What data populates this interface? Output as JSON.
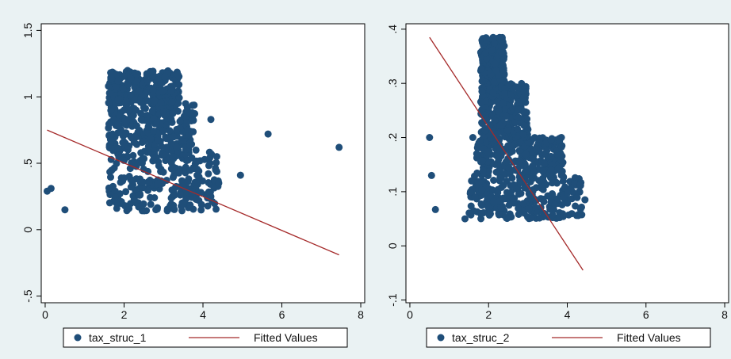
{
  "chart_data": [
    {
      "type": "scatter",
      "title": "",
      "xlabel": "",
      "ylabel": "",
      "xlim": [
        -0.1,
        8.1
      ],
      "ylim": [
        -0.55,
        1.55
      ],
      "x_ticks": [
        0,
        2,
        4,
        6,
        8
      ],
      "y_ticks": [
        -0.5,
        0,
        0.5,
        1,
        1.5
      ],
      "x_tick_labels": [
        "0",
        "2",
        "4",
        "6",
        "8"
      ],
      "y_tick_labels": [
        "-.5",
        "0",
        ".5",
        "1",
        "1.5"
      ],
      "grid": false,
      "legend": {
        "placement": "bottom",
        "entries": [
          "tax_struc_1",
          "Fitted Values"
        ]
      },
      "scatter_color": "#1f4e79",
      "line_color": "#a52a2a",
      "cloud": [
        {
          "x": [
            1.6,
            4.4
          ],
          "y": [
            0.14,
            0.6
          ]
        },
        {
          "x": [
            1.6,
            3.8
          ],
          "y": [
            0.6,
            0.95
          ]
        },
        {
          "x": [
            1.6,
            3.4
          ],
          "y": [
            0.95,
            1.2
          ]
        }
      ],
      "series": [
        {
          "name": "tax_struc_1",
          "kind": "scatter",
          "points": [
            [
              0.05,
              0.29
            ],
            [
              0.15,
              0.31
            ],
            [
              0.5,
              0.15
            ],
            [
              4.95,
              0.41
            ],
            [
              5.65,
              0.72
            ],
            [
              7.45,
              0.62
            ],
            [
              4.2,
              0.83
            ],
            [
              4.35,
              0.55
            ],
            [
              4.2,
              0.25
            ],
            [
              3.95,
              0.28
            ],
            [
              4.4,
              0.35
            ]
          ]
        },
        {
          "name": "Fitted Values",
          "kind": "line",
          "points": [
            [
              0.05,
              0.75
            ],
            [
              7.45,
              -0.19
            ]
          ]
        }
      ]
    },
    {
      "type": "scatter",
      "title": "",
      "xlabel": "",
      "ylabel": "",
      "xlim": [
        -0.1,
        8.1
      ],
      "ylim": [
        -0.105,
        0.41
      ],
      "x_ticks": [
        0,
        2,
        4,
        6,
        8
      ],
      "y_ticks": [
        -0.1,
        0,
        0.1,
        0.2,
        0.3,
        0.4
      ],
      "x_tick_labels": [
        "0",
        "2",
        "4",
        "6",
        "8"
      ],
      "y_tick_labels": [
        "-.1",
        "0",
        ".1",
        ".2",
        ".3",
        ".4"
      ],
      "grid": false,
      "legend": {
        "placement": "bottom",
        "entries": [
          "tax_struc_2",
          "Fitted Values"
        ]
      },
      "scatter_color": "#1f4e79",
      "line_color": "#a52a2a",
      "cloud": [
        {
          "x": [
            1.5,
            4.4
          ],
          "y": [
            0.05,
            0.13
          ]
        },
        {
          "x": [
            1.7,
            3.9
          ],
          "y": [
            0.13,
            0.2
          ]
        },
        {
          "x": [
            1.8,
            3.0
          ],
          "y": [
            0.2,
            0.3
          ]
        },
        {
          "x": [
            1.8,
            2.4
          ],
          "y": [
            0.3,
            0.385
          ]
        }
      ],
      "series": [
        {
          "name": "tax_struc_2",
          "kind": "scatter",
          "points": [
            [
              0.5,
              0.2
            ],
            [
              0.55,
              0.13
            ],
            [
              0.65,
              0.067
            ],
            [
              1.4,
              0.05
            ],
            [
              1.6,
              0.2
            ],
            [
              4.45,
              0.085
            ],
            [
              4.3,
              0.1
            ],
            [
              3.85,
              0.2
            ],
            [
              1.7,
              0.17
            ]
          ]
        },
        {
          "name": "Fitted Values",
          "kind": "line",
          "points": [
            [
              0.5,
              0.385
            ],
            [
              4.4,
              -0.045
            ]
          ]
        }
      ]
    }
  ]
}
